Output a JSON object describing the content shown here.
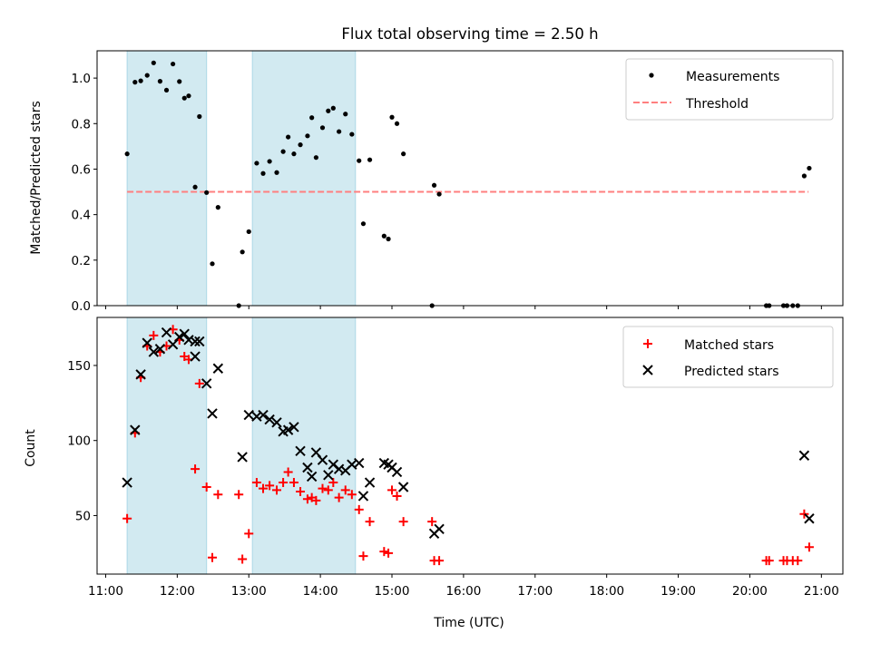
{
  "title": "Flux total observing time = 2.50 h",
  "chart_data": [
    {
      "type": "scatter",
      "ylabel": "Matched/Predicted stars",
      "xlabel": "",
      "ylim": [
        0,
        1.12
      ],
      "xlim": [
        10.88,
        21.3
      ],
      "yticks": [
        0.0,
        0.2,
        0.4,
        0.6,
        0.8,
        1.0
      ],
      "ytick_labels": [
        "0.0",
        "0.2",
        "0.4",
        "0.6",
        "0.8",
        "1.0"
      ],
      "shaded_intervals": [
        [
          11.3,
          12.41
        ],
        [
          13.05,
          14.49
        ]
      ],
      "threshold": {
        "value": 0.5,
        "x_range": [
          11.3,
          20.82
        ]
      },
      "legend": {
        "position": "top-right",
        "entries": [
          "Measurements",
          "Threshold"
        ]
      },
      "series": [
        {
          "name": "Measurements",
          "points": [
            [
              11.3,
              0.667
            ],
            [
              11.41,
              0.982
            ],
            [
              11.49,
              0.988
            ],
            [
              11.58,
              1.012
            ],
            [
              11.67,
              1.067
            ],
            [
              11.76,
              0.986
            ],
            [
              11.85,
              0.947
            ],
            [
              11.94,
              1.062
            ],
            [
              12.03,
              0.985
            ],
            [
              12.1,
              0.912
            ],
            [
              12.16,
              0.922
            ],
            [
              12.25,
              0.521
            ],
            [
              12.31,
              0.831
            ],
            [
              12.41,
              0.497
            ],
            [
              12.49,
              0.184
            ],
            [
              12.57,
              0.432
            ],
            [
              12.86,
              0.0
            ],
            [
              12.91,
              0.236
            ],
            [
              13.0,
              0.325
            ],
            [
              13.11,
              0.626
            ],
            [
              13.2,
              0.581
            ],
            [
              13.29,
              0.634
            ],
            [
              13.39,
              0.585
            ],
            [
              13.48,
              0.677
            ],
            [
              13.55,
              0.741
            ],
            [
              13.63,
              0.667
            ],
            [
              13.72,
              0.707
            ],
            [
              13.82,
              0.746
            ],
            [
              13.88,
              0.826
            ],
            [
              13.94,
              0.651
            ],
            [
              14.03,
              0.782
            ],
            [
              14.11,
              0.856
            ],
            [
              14.18,
              0.868
            ],
            [
              14.26,
              0.765
            ],
            [
              14.35,
              0.842
            ],
            [
              14.44,
              0.753
            ],
            [
              14.54,
              0.637
            ],
            [
              14.6,
              0.36
            ],
            [
              14.69,
              0.641
            ],
            [
              14.89,
              0.306
            ],
            [
              14.95,
              0.293
            ],
            [
              15.0,
              0.828
            ],
            [
              15.07,
              0.8
            ],
            [
              15.16,
              0.667
            ],
            [
              15.56,
              0.0
            ],
            [
              15.59,
              0.529
            ],
            [
              15.66,
              0.49
            ],
            [
              20.23,
              0.0
            ],
            [
              20.27,
              0.0
            ],
            [
              20.47,
              0.0
            ],
            [
              20.52,
              0.0
            ],
            [
              20.6,
              0.0
            ],
            [
              20.67,
              0.0
            ],
            [
              20.76,
              0.57
            ],
            [
              20.83,
              0.604
            ]
          ]
        },
        {
          "name": "Threshold",
          "values": [
            0.5,
            0.5
          ]
        }
      ]
    },
    {
      "type": "scatter",
      "ylabel": "Count",
      "xlabel": "Time (UTC)",
      "ylim": [
        11,
        182
      ],
      "xlim": [
        10.88,
        21.3
      ],
      "yticks": [
        50,
        100,
        150
      ],
      "ytick_labels": [
        "50",
        "100",
        "150"
      ],
      "xticks": [
        11,
        12,
        13,
        14,
        15,
        16,
        17,
        18,
        19,
        20,
        21
      ],
      "xtick_labels": [
        "11:00",
        "12:00",
        "13:00",
        "14:00",
        "15:00",
        "16:00",
        "17:00",
        "18:00",
        "19:00",
        "20:00",
        "21:00"
      ],
      "shaded_intervals": [
        [
          11.3,
          12.41
        ],
        [
          13.05,
          14.49
        ]
      ],
      "legend": {
        "position": "top-right",
        "entries": [
          "Matched stars",
          "Predicted stars"
        ]
      },
      "series": [
        {
          "name": "Matched stars",
          "points": [
            [
              11.3,
              48
            ],
            [
              11.41,
              105
            ],
            [
              11.49,
              142
            ],
            [
              11.58,
              163
            ],
            [
              11.67,
              170
            ],
            [
              11.76,
              159
            ],
            [
              11.85,
              163
            ],
            [
              11.94,
              174
            ],
            [
              12.03,
              167
            ],
            [
              12.1,
              156
            ],
            [
              12.16,
              154
            ],
            [
              12.25,
              81
            ],
            [
              12.31,
              138
            ],
            [
              12.41,
              69
            ],
            [
              12.49,
              22
            ],
            [
              12.57,
              64
            ],
            [
              12.86,
              64
            ],
            [
              12.91,
              21
            ],
            [
              13.0,
              38
            ],
            [
              13.11,
              72
            ],
            [
              13.2,
              68
            ],
            [
              13.29,
              70
            ],
            [
              13.39,
              67
            ],
            [
              13.48,
              72
            ],
            [
              13.55,
              79
            ],
            [
              13.63,
              72
            ],
            [
              13.72,
              66
            ],
            [
              13.82,
              61
            ],
            [
              13.88,
              62
            ],
            [
              13.94,
              60
            ],
            [
              14.03,
              68
            ],
            [
              14.11,
              67
            ],
            [
              14.18,
              72
            ],
            [
              14.26,
              62
            ],
            [
              14.35,
              67
            ],
            [
              14.44,
              64
            ],
            [
              14.54,
              54
            ],
            [
              14.6,
              23
            ],
            [
              14.69,
              46
            ],
            [
              14.89,
              26
            ],
            [
              14.95,
              25
            ],
            [
              15.0,
              67
            ],
            [
              15.07,
              63
            ],
            [
              15.16,
              46
            ],
            [
              15.56,
              46
            ],
            [
              15.59,
              20
            ],
            [
              15.66,
              20
            ],
            [
              20.23,
              20
            ],
            [
              20.27,
              20
            ],
            [
              20.47,
              20
            ],
            [
              20.52,
              20
            ],
            [
              20.6,
              20
            ],
            [
              20.67,
              20
            ],
            [
              20.76,
              51
            ],
            [
              20.83,
              29
            ]
          ]
        },
        {
          "name": "Predicted stars",
          "points": [
            [
              11.3,
              72
            ],
            [
              11.41,
              107
            ],
            [
              11.49,
              144
            ],
            [
              11.58,
              165
            ],
            [
              11.67,
              159
            ],
            [
              11.76,
              161
            ],
            [
              11.85,
              172
            ],
            [
              11.94,
              164
            ],
            [
              12.03,
              169
            ],
            [
              12.1,
              171
            ],
            [
              12.16,
              167
            ],
            [
              12.25,
              156
            ],
            [
              12.25,
              166
            ],
            [
              12.31,
              166
            ],
            [
              12.41,
              138
            ],
            [
              12.49,
              118
            ],
            [
              12.57,
              148
            ],
            [
              12.91,
              89
            ],
            [
              13.0,
              117
            ],
            [
              13.11,
              116
            ],
            [
              13.2,
              117
            ],
            [
              13.29,
              114
            ],
            [
              13.39,
              112
            ],
            [
              13.48,
              106
            ],
            [
              13.55,
              107
            ],
            [
              13.63,
              109
            ],
            [
              13.72,
              93
            ],
            [
              13.82,
              82
            ],
            [
              13.88,
              76
            ],
            [
              13.94,
              92
            ],
            [
              14.03,
              87
            ],
            [
              14.11,
              77
            ],
            [
              14.18,
              84
            ],
            [
              14.26,
              81
            ],
            [
              14.35,
              80
            ],
            [
              14.44,
              84
            ],
            [
              14.54,
              85
            ],
            [
              14.6,
              63
            ],
            [
              14.69,
              72
            ],
            [
              14.89,
              85
            ],
            [
              14.95,
              84
            ],
            [
              15.0,
              82
            ],
            [
              15.07,
              79
            ],
            [
              15.16,
              69
            ],
            [
              15.59,
              38
            ],
            [
              15.66,
              41
            ],
            [
              20.76,
              90
            ],
            [
              20.83,
              48
            ]
          ]
        }
      ]
    }
  ],
  "colors": {
    "shade": "#add8e6",
    "threshold": "#ff7f7f",
    "matched": "#ff0000",
    "predicted": "#000000",
    "measurements": "#000000"
  }
}
